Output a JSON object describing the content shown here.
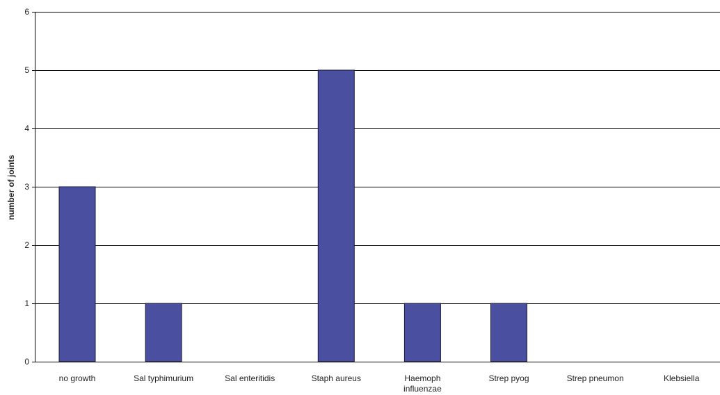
{
  "chart_data": {
    "type": "bar",
    "title": "",
    "xlabel": "",
    "ylabel": "number of joints",
    "categories": [
      "no growth",
      "Sal typhimurium",
      "Sal enteritidis",
      "Staph aureus",
      "Haemoph influenzae",
      "Strep pyog",
      "Strep pneumon",
      "Klebsiella"
    ],
    "category_lines": [
      [
        "no growth"
      ],
      [
        "Sal typhimurium"
      ],
      [
        "Sal enteritidis"
      ],
      [
        "Staph aureus"
      ],
      [
        "Haemoph",
        "influenzae"
      ],
      [
        "Strep pyog"
      ],
      [
        "Strep pneumon"
      ],
      [
        "Klebsiella"
      ]
    ],
    "values": [
      3,
      1,
      0,
      5,
      1,
      1,
      0,
      0
    ],
    "ylim": [
      0,
      6
    ],
    "yticks": [
      0,
      1,
      2,
      3,
      4,
      5,
      6
    ],
    "grid": true,
    "legend": "none",
    "colors": {
      "bar": "#4b4fa0",
      "bar_edge": "#1a1a3a",
      "grid": "#000000",
      "axis": "#000000"
    }
  }
}
